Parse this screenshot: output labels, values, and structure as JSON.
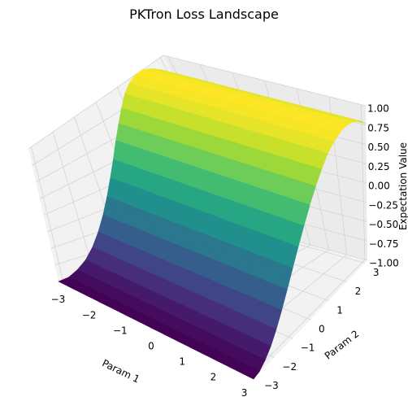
{
  "chart_data": {
    "type": "surface",
    "title": "PKTron Loss Landscape",
    "xlabel": "Param 1",
    "ylabel": "Param 2",
    "zlabel": "Expectation Value",
    "xlim": [
      -3.14,
      3.14
    ],
    "ylim": [
      -3.14,
      3.14
    ],
    "zlim": [
      -1,
      1
    ],
    "x_ticks": [
      -3,
      -2,
      -1,
      0,
      1,
      2,
      3
    ],
    "y_ticks": [
      -3,
      -2,
      -1,
      0,
      1,
      2,
      3
    ],
    "z_ticks": [
      "−1.00",
      "−0.75",
      "−0.50",
      "−0.25",
      "0.00",
      "0.25",
      "0.50",
      "0.75",
      "1.00"
    ],
    "x_tick_labels": [
      "−3",
      "−2",
      "−1",
      "0",
      "1",
      "2",
      "3"
    ],
    "y_tick_labels": [
      "−3",
      "−2",
      "−1",
      "0",
      "1",
      "2",
      "3"
    ],
    "x_grid_values": [
      -3.14,
      -2.81,
      -2.48,
      -2.15,
      -1.82,
      -1.49,
      -1.16,
      -0.83,
      -0.5,
      -0.17,
      0.17,
      0.5,
      0.83,
      1.16,
      1.49,
      1.82,
      2.15,
      2.48,
      2.81,
      3.14
    ],
    "y_grid_values": [
      -3.14,
      -2.81,
      -2.48,
      -2.15,
      -1.82,
      -1.49,
      -1.16,
      -0.83,
      -0.5,
      -0.17,
      0.17,
      0.5,
      0.83,
      1.16,
      1.49,
      1.82,
      2.15,
      2.48,
      2.81,
      3.14
    ],
    "z_values": [
      [
        -1.0,
        -0.98,
        -0.91,
        -0.81,
        -0.67,
        -0.5,
        -0.31,
        -0.11,
        0.09,
        0.28,
        0.47,
        0.63,
        0.77,
        0.89,
        0.96,
        1.0,
        1.0,
        0.96,
        0.89,
        0.77
      ],
      [
        -1.0,
        -0.98,
        -0.91,
        -0.81,
        -0.67,
        -0.5,
        -0.31,
        -0.11,
        0.09,
        0.28,
        0.47,
        0.63,
        0.77,
        0.89,
        0.96,
        1.0,
        1.0,
        0.96,
        0.89,
        0.77
      ],
      [
        -1.0,
        -0.98,
        -0.91,
        -0.81,
        -0.67,
        -0.5,
        -0.31,
        -0.11,
        0.09,
        0.28,
        0.47,
        0.63,
        0.77,
        0.89,
        0.96,
        1.0,
        1.0,
        0.96,
        0.89,
        0.77
      ],
      [
        -1.0,
        -0.98,
        -0.91,
        -0.81,
        -0.67,
        -0.5,
        -0.31,
        -0.11,
        0.09,
        0.28,
        0.47,
        0.63,
        0.77,
        0.89,
        0.96,
        1.0,
        1.0,
        0.96,
        0.89,
        0.77
      ],
      [
        -1.0,
        -0.98,
        -0.91,
        -0.81,
        -0.67,
        -0.5,
        -0.31,
        -0.11,
        0.09,
        0.28,
        0.47,
        0.63,
        0.77,
        0.89,
        0.96,
        1.0,
        1.0,
        0.96,
        0.89,
        0.77
      ],
      [
        -1.0,
        -0.98,
        -0.91,
        -0.81,
        -0.67,
        -0.5,
        -0.31,
        -0.11,
        0.09,
        0.28,
        0.47,
        0.63,
        0.77,
        0.89,
        0.96,
        1.0,
        1.0,
        0.96,
        0.89,
        0.77
      ],
      [
        -1.0,
        -0.98,
        -0.91,
        -0.81,
        -0.67,
        -0.5,
        -0.31,
        -0.11,
        0.09,
        0.28,
        0.47,
        0.63,
        0.77,
        0.89,
        0.96,
        1.0,
        1.0,
        0.96,
        0.89,
        0.77
      ],
      [
        -1.0,
        -0.98,
        -0.91,
        -0.81,
        -0.67,
        -0.5,
        -0.31,
        -0.11,
        0.09,
        0.28,
        0.47,
        0.63,
        0.77,
        0.89,
        0.96,
        1.0,
        1.0,
        0.96,
        0.89,
        0.77
      ],
      [
        -1.0,
        -0.98,
        -0.91,
        -0.81,
        -0.67,
        -0.5,
        -0.31,
        -0.11,
        0.09,
        0.28,
        0.47,
        0.63,
        0.77,
        0.89,
        0.96,
        1.0,
        1.0,
        0.96,
        0.89,
        0.77
      ],
      [
        -1.0,
        -0.98,
        -0.91,
        -0.81,
        -0.67,
        -0.5,
        -0.31,
        -0.11,
        0.09,
        0.28,
        0.47,
        0.63,
        0.77,
        0.89,
        0.96,
        1.0,
        1.0,
        0.96,
        0.89,
        0.77
      ],
      [
        -1.0,
        -0.98,
        -0.91,
        -0.81,
        -0.67,
        -0.5,
        -0.31,
        -0.11,
        0.09,
        0.28,
        0.47,
        0.63,
        0.77,
        0.89,
        0.96,
        1.0,
        1.0,
        0.96,
        0.89,
        0.77
      ],
      [
        -1.0,
        -0.98,
        -0.91,
        -0.81,
        -0.67,
        -0.5,
        -0.31,
        -0.11,
        0.09,
        0.28,
        0.47,
        0.63,
        0.77,
        0.89,
        0.96,
        1.0,
        1.0,
        0.96,
        0.89,
        0.77
      ],
      [
        -1.0,
        -0.98,
        -0.91,
        -0.81,
        -0.67,
        -0.5,
        -0.31,
        -0.11,
        0.09,
        0.28,
        0.47,
        0.63,
        0.77,
        0.89,
        0.96,
        1.0,
        1.0,
        0.96,
        0.89,
        0.77
      ],
      [
        -1.0,
        -0.98,
        -0.91,
        -0.81,
        -0.67,
        -0.5,
        -0.31,
        -0.11,
        0.09,
        0.28,
        0.47,
        0.63,
        0.77,
        0.89,
        0.96,
        1.0,
        1.0,
        0.96,
        0.89,
        0.77
      ],
      [
        -1.0,
        -0.98,
        -0.91,
        -0.81,
        -0.67,
        -0.5,
        -0.31,
        -0.11,
        0.09,
        0.28,
        0.47,
        0.63,
        0.77,
        0.89,
        0.96,
        1.0,
        1.0,
        0.96,
        0.89,
        0.77
      ],
      [
        -1.0,
        -0.98,
        -0.91,
        -0.81,
        -0.67,
        -0.5,
        -0.31,
        -0.11,
        0.09,
        0.28,
        0.47,
        0.63,
        0.77,
        0.89,
        0.96,
        1.0,
        1.0,
        0.96,
        0.89,
        0.77
      ],
      [
        -1.0,
        -0.98,
        -0.91,
        -0.81,
        -0.67,
        -0.5,
        -0.31,
        -0.11,
        0.09,
        0.28,
        0.47,
        0.63,
        0.77,
        0.89,
        0.96,
        1.0,
        1.0,
        0.96,
        0.89,
        0.77
      ],
      [
        -1.0,
        -0.98,
        -0.91,
        -0.81,
        -0.67,
        -0.5,
        -0.31,
        -0.11,
        0.09,
        0.28,
        0.47,
        0.63,
        0.77,
        0.89,
        0.96,
        1.0,
        1.0,
        0.96,
        0.89,
        0.77
      ],
      [
        -1.0,
        -0.98,
        -0.91,
        -0.81,
        -0.67,
        -0.5,
        -0.31,
        -0.11,
        0.09,
        0.28,
        0.47,
        0.63,
        0.77,
        0.89,
        0.96,
        1.0,
        1.0,
        0.96,
        0.89,
        0.77
      ],
      [
        -1.0,
        -0.98,
        -0.91,
        -0.81,
        -0.67,
        -0.5,
        -0.31,
        -0.11,
        0.09,
        0.28,
        0.47,
        0.63,
        0.77,
        0.89,
        0.96,
        1.0,
        1.0,
        0.96,
        0.89,
        0.77
      ]
    ],
    "colormap": "viridis",
    "colormap_stops": [
      "#440154",
      "#472d7b",
      "#3b528b",
      "#2c728e",
      "#21918c",
      "#28ae80",
      "#5ec962",
      "#addc30",
      "#fde725"
    ],
    "grid": true,
    "legend": "none"
  }
}
